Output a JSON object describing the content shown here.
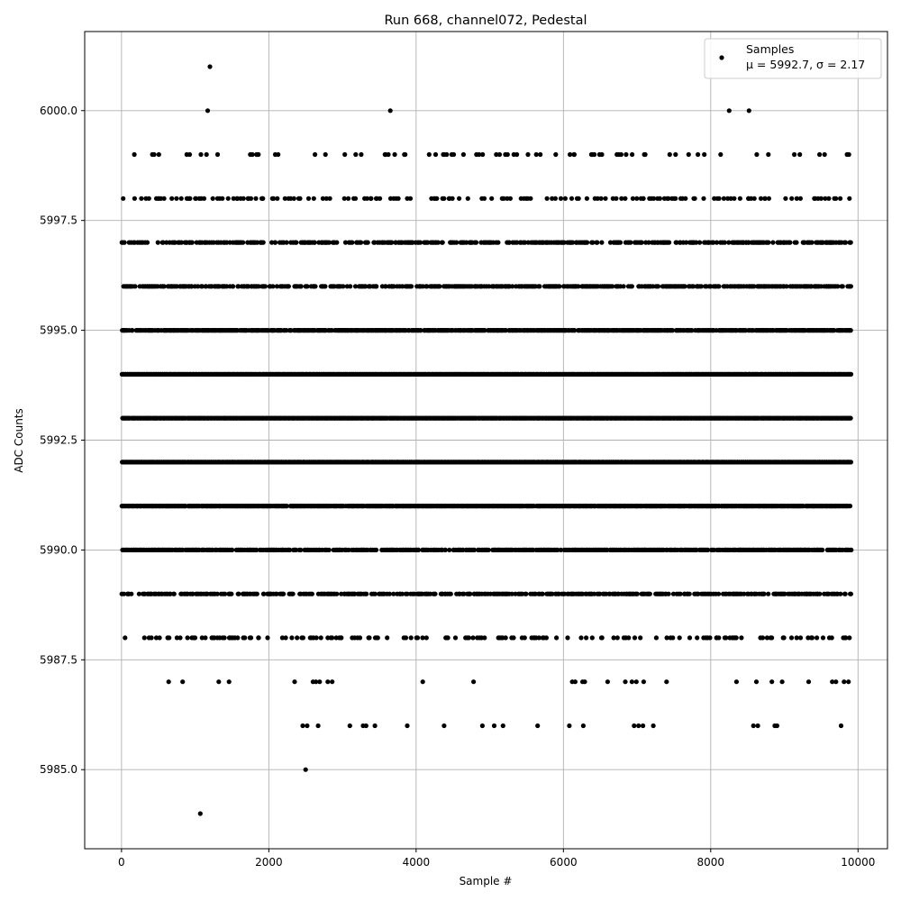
{
  "chart_data": {
    "type": "scatter",
    "title": "Run 668, channel072, Pedestal",
    "xlabel": "Sample #",
    "ylabel": "ADC Counts",
    "xlim": [
      -500,
      10400
    ],
    "ylim": [
      5983.2,
      6001.8
    ],
    "xticks": [
      0,
      2000,
      4000,
      6000,
      8000,
      10000
    ],
    "xtick_labels": [
      "0",
      "2000",
      "4000",
      "6000",
      "8000",
      "10000"
    ],
    "yticks": [
      5985.0,
      5987.5,
      5990.0,
      5992.5,
      5995.0,
      5997.5,
      6000.0
    ],
    "ytick_labels": [
      "5985.0",
      "5987.5",
      "5990.0",
      "5992.5",
      "5995.0",
      "5997.5",
      "6000.0"
    ],
    "grid": true,
    "legend_position": "top-right",
    "legend": {
      "label": "Samples",
      "stats": "μ = 5992.7, σ = 2.17"
    },
    "marker_color": "#000000",
    "n_samples": 10000,
    "value_levels": [
      5984,
      5985,
      5986,
      5987,
      5988,
      5989,
      5990,
      5991,
      5992,
      5993,
      5994,
      5995,
      5996,
      5997,
      5998,
      5999,
      6000,
      6001
    ],
    "series": [
      {
        "name": "Samples",
        "points": [
          [
            1070,
            5984
          ],
          [
            2500,
            5985
          ],
          [
            1200,
            6001
          ],
          [
            1170,
            6000
          ],
          [
            3650,
            6000
          ],
          [
            8250,
            6000
          ],
          [
            8520,
            6000
          ],
          [
            2460,
            5986
          ],
          [
            2520,
            5986
          ],
          [
            2670,
            5986
          ],
          [
            3100,
            5986
          ],
          [
            3280,
            5986
          ],
          [
            3320,
            5986
          ],
          [
            3440,
            5986
          ],
          [
            3880,
            5986
          ],
          [
            4380,
            5986
          ],
          [
            4900,
            5986
          ],
          [
            5060,
            5986
          ],
          [
            5180,
            5986
          ],
          [
            5650,
            5986
          ],
          [
            6080,
            5986
          ],
          [
            6270,
            5986
          ],
          [
            6960,
            5986
          ],
          [
            7020,
            5986
          ],
          [
            7080,
            5986
          ],
          [
            7220,
            5986
          ],
          [
            8580,
            5986
          ],
          [
            8640,
            5986
          ],
          [
            8870,
            5986
          ],
          [
            8900,
            5986
          ],
          [
            9770,
            5986
          ],
          [
            640,
            5987
          ],
          [
            830,
            5987
          ],
          [
            1320,
            5987
          ],
          [
            1460,
            5987
          ],
          [
            2350,
            5987
          ],
          [
            2600,
            5987
          ],
          [
            2640,
            5987
          ],
          [
            2690,
            5987
          ],
          [
            2800,
            5987
          ],
          [
            2860,
            5987
          ],
          [
            4090,
            5987
          ],
          [
            4780,
            5987
          ],
          [
            6120,
            5987
          ],
          [
            6160,
            5987
          ],
          [
            6260,
            5987
          ],
          [
            6290,
            5987
          ],
          [
            6600,
            5987
          ],
          [
            6840,
            5987
          ],
          [
            6930,
            5987
          ],
          [
            6990,
            5987
          ],
          [
            7090,
            5987
          ],
          [
            7400,
            5987
          ],
          [
            8350,
            5987
          ],
          [
            8620,
            5987
          ],
          [
            8830,
            5987
          ],
          [
            8970,
            5987
          ],
          [
            9330,
            5987
          ],
          [
            9650,
            5987
          ],
          [
            9700,
            5987
          ],
          [
            9810,
            5987
          ],
          [
            9870,
            5987
          ]
        ]
      }
    ]
  }
}
